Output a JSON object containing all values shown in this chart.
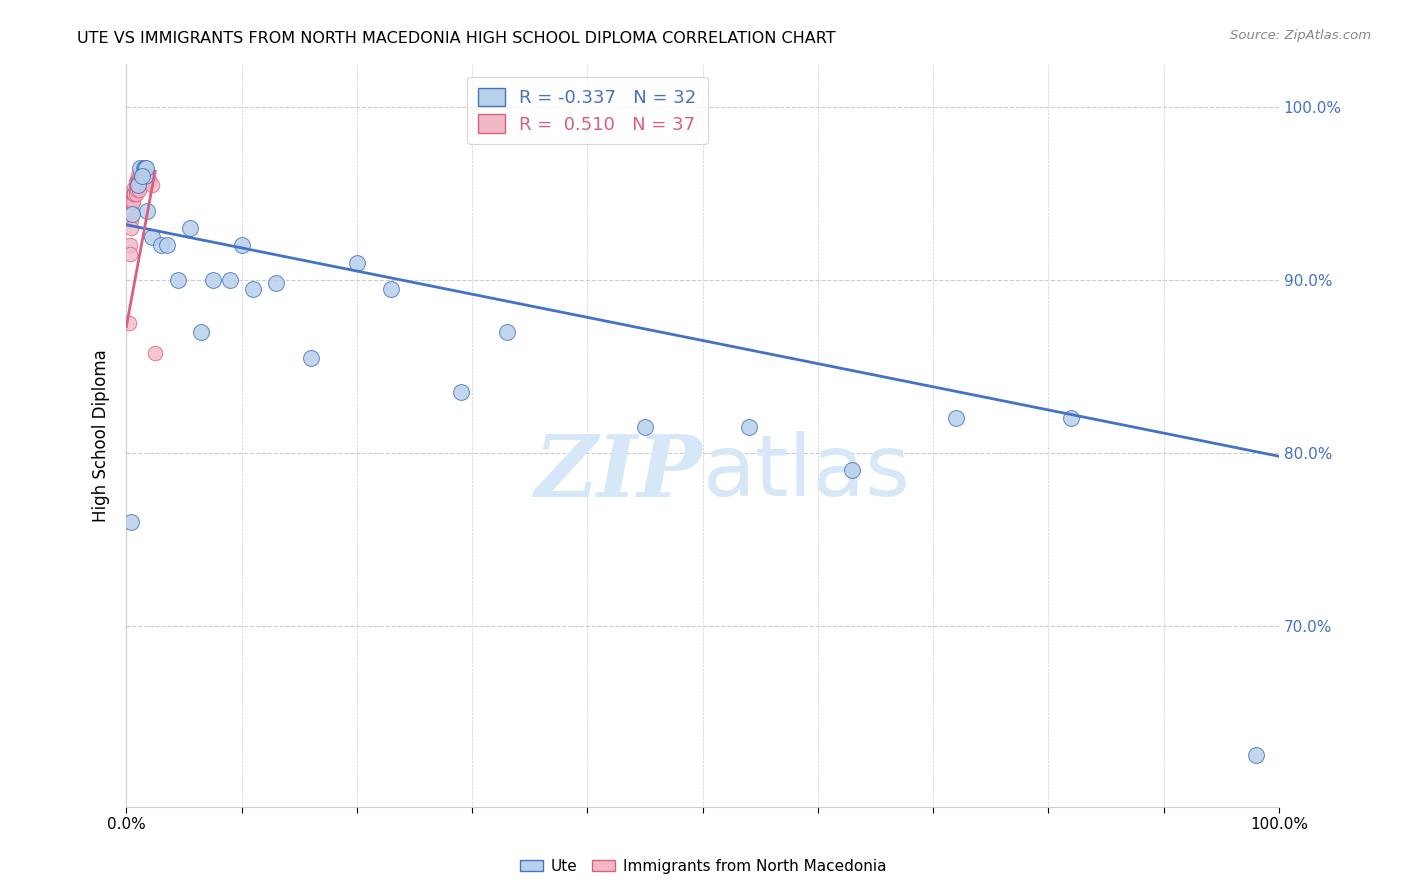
{
  "title": "UTE VS IMMIGRANTS FROM NORTH MACEDONIA HIGH SCHOOL DIPLOMA CORRELATION CHART",
  "source": "Source: ZipAtlas.com",
  "ylabel": "High School Diploma",
  "xlim": [
    0,
    1
  ],
  "ylim": [
    0.595,
    1.025
  ],
  "yticks": [
    0.7,
    0.8,
    0.9,
    1.0
  ],
  "ytick_labels": [
    "70.0%",
    "80.0%",
    "90.0%",
    "100.0%"
  ],
  "legend_blue_r": "-0.337",
  "legend_blue_n": "32",
  "legend_pink_r": "0.510",
  "legend_pink_n": "37",
  "blue_color": "#b8d0ea",
  "pink_color": "#f2b8c6",
  "trendline_blue_color": "#4472c4",
  "trendline_pink_color": "#d95f7f",
  "watermark_color": "#d6e8f7",
  "blue_points_x": [
    0.004,
    0.012,
    0.015,
    0.016,
    0.016,
    0.017,
    0.01,
    0.014,
    0.018,
    0.022,
    0.03,
    0.035,
    0.045,
    0.055,
    0.065,
    0.075,
    0.09,
    0.1,
    0.11,
    0.13,
    0.16,
    0.2,
    0.23,
    0.29,
    0.33,
    0.45,
    0.54,
    0.63,
    0.72,
    0.82,
    0.005,
    0.98
  ],
  "blue_points_y": [
    0.76,
    0.965,
    0.965,
    0.965,
    0.96,
    0.965,
    0.955,
    0.96,
    0.94,
    0.925,
    0.92,
    0.92,
    0.9,
    0.93,
    0.87,
    0.9,
    0.9,
    0.92,
    0.895,
    0.898,
    0.855,
    0.91,
    0.895,
    0.835,
    0.87,
    0.815,
    0.815,
    0.79,
    0.82,
    0.82,
    0.938,
    0.625
  ],
  "pink_points_x": [
    0.002,
    0.003,
    0.003,
    0.004,
    0.004,
    0.005,
    0.005,
    0.006,
    0.006,
    0.006,
    0.007,
    0.007,
    0.007,
    0.008,
    0.008,
    0.008,
    0.009,
    0.009,
    0.009,
    0.01,
    0.01,
    0.01,
    0.011,
    0.011,
    0.011,
    0.012,
    0.012,
    0.013,
    0.013,
    0.014,
    0.015,
    0.016,
    0.017,
    0.018,
    0.02,
    0.022,
    0.025
  ],
  "pink_points_y": [
    0.875,
    0.92,
    0.915,
    0.935,
    0.93,
    0.94,
    0.945,
    0.947,
    0.95,
    0.945,
    0.953,
    0.95,
    0.95,
    0.957,
    0.953,
    0.95,
    0.958,
    0.955,
    0.952,
    0.961,
    0.958,
    0.956,
    0.958,
    0.955,
    0.952,
    0.96,
    0.958,
    0.96,
    0.957,
    0.96,
    0.96,
    0.96,
    0.958,
    0.958,
    0.958,
    0.955,
    0.858
  ],
  "blue_size": 130,
  "pink_size": 110,
  "blue_trendline_x": [
    0.0,
    1.0
  ],
  "blue_trendline_y": [
    0.932,
    0.798
  ],
  "pink_trendline_x": [
    0.0,
    0.025
  ],
  "pink_trendline_y": [
    0.873,
    0.963
  ]
}
